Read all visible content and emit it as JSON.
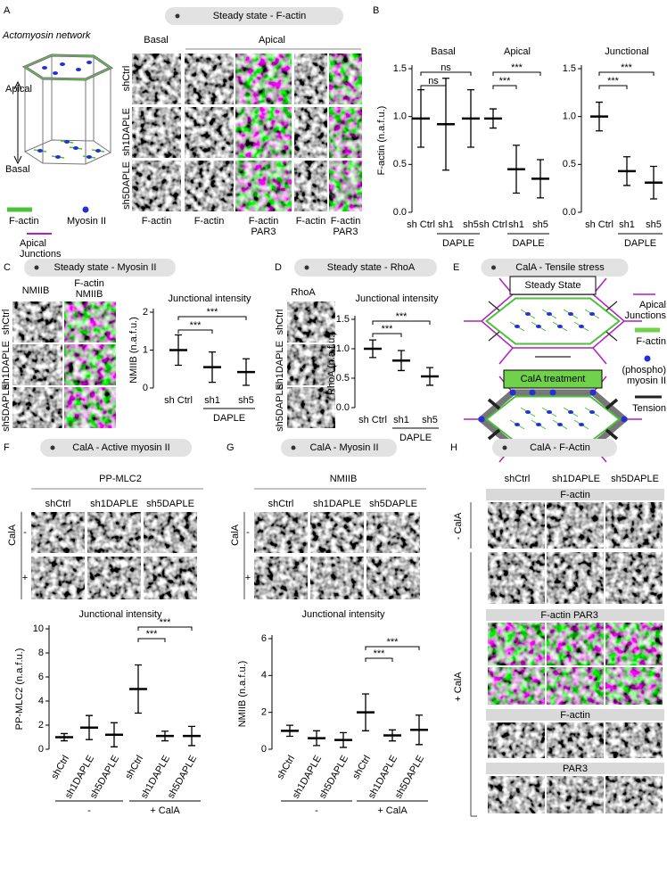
{
  "A": {
    "label": "A",
    "title": "Steady state - F-actin",
    "subtitle": "Actomyosin network",
    "diagram": [
      "Apical",
      "Basal"
    ],
    "legend": [
      [
        "F-actin"
      ],
      [
        "Myosin II"
      ],
      [
        "Apical",
        "Junctions"
      ]
    ],
    "columns": [
      "Basal",
      "Apical"
    ],
    "rows": [
      "shCtrl",
      "sh1DAPLE",
      "sh5DAPLE"
    ],
    "channels": [
      [
        "F-actin"
      ],
      [
        "F-actin"
      ],
      [
        "F-actin",
        "PAR3"
      ],
      [
        "F-actin"
      ],
      [
        "F-actin",
        "PAR3"
      ]
    ]
  },
  "B": {
    "label": "B"
  },
  "C": {
    "label": "C",
    "title": "Steady state - Myosin II",
    "image_labels": [
      "NMIIB",
      "F-actin",
      "NMIIB"
    ],
    "rows": [
      "shCtrl",
      "sh1DAPLE",
      "sh5DAPLE"
    ]
  },
  "D": {
    "label": "D",
    "title": "Steady state - RhoA",
    "image_label": "RhoA",
    "rows": [
      "shCtrl",
      "sh1DAPLE",
      "sh5DAPLE"
    ]
  },
  "E": {
    "label": "E",
    "title": "CalA - Tensile stress",
    "boxes": [
      "Steady State",
      "CalA treatment"
    ],
    "legend": [
      [
        "Apical",
        "Junctions"
      ],
      [
        "F-actin"
      ],
      [
        "(phospho)",
        "myosin II"
      ],
      [
        "Tension"
      ]
    ]
  },
  "F": {
    "label": "F",
    "title": "CalA - Active myosin II",
    "marker": "PP-MLC2",
    "columns": [
      "shCtrl",
      "sh1DAPLE",
      "sh5DAPLE"
    ],
    "treatment": "CalA",
    "conditions": [
      "-",
      "+"
    ]
  },
  "G": {
    "label": "G",
    "title": "CalA - Myosin II",
    "marker": "NMIIB",
    "columns": [
      "shCtrl",
      "sh1DAPLE",
      "sh5DAPLE"
    ],
    "treatment": "CalA",
    "conditions": [
      "-",
      "+"
    ]
  },
  "H": {
    "label": "H",
    "title": "CalA - F-Actin",
    "columns": [
      "shCtrl",
      "sh1DAPLE",
      "sh5DAPLE"
    ],
    "conditions": [
      "- CalA",
      "+ CalA"
    ],
    "bars": [
      "F-actin",
      "F-actin",
      "PAR3",
      "F-actin",
      "PAR3"
    ]
  },
  "chart_data": [
    {
      "type": "dot",
      "section_titles": [
        "Basal",
        "Apical"
      ],
      "ylabel": "F-actin (n.a.f.u.)",
      "categories": [
        "sh Ctrl",
        "sh1",
        "sh5",
        "sh Ctrl",
        "sh1",
        "sh5"
      ],
      "values": [
        0.98,
        0.92,
        0.98,
        0.98,
        0.45,
        0.35
      ],
      "errors": [
        0.3,
        0.48,
        0.3,
        0.1,
        0.25,
        0.2
      ],
      "ylim": [
        0,
        1.5
      ],
      "yticks": [
        {
          "value": 0,
          "label": "0.0"
        },
        {
          "value": 0.5,
          "label": "0.5"
        },
        {
          "value": 1,
          "label": "1.0"
        },
        {
          "value": 1.5,
          "label": "1.5"
        }
      ],
      "groups": [
        "DAPLE",
        "DAPLE"
      ],
      "significance": [
        "ns",
        "ns",
        "***",
        "***"
      ]
    },
    {
      "type": "dot",
      "title": "Junctional",
      "categories": [
        "sh Ctrl",
        "sh1",
        "sh5"
      ],
      "values": [
        1.0,
        0.43,
        0.31
      ],
      "errors": [
        0.15,
        0.15,
        0.17
      ],
      "ylim": [
        0,
        1.5
      ],
      "yticks": [
        {
          "value": 0,
          "label": "0.0"
        },
        {
          "value": 0.5,
          "label": "0.5"
        },
        {
          "value": 1,
          "label": "1.0"
        },
        {
          "value": 1.5,
          "label": "1.5"
        }
      ],
      "groups": [
        "DAPLE"
      ],
      "significance": [
        "***",
        "***"
      ]
    },
    {
      "type": "dot",
      "title": "Junctional intensity",
      "ylabel": "NMIIB (n.a.f.u.)",
      "categories": [
        "sh Ctrl",
        "sh1",
        "sh5"
      ],
      "values": [
        1.0,
        0.55,
        0.42
      ],
      "errors": [
        0.4,
        0.4,
        0.35
      ],
      "ylim": [
        0,
        2
      ],
      "yticks": [
        0,
        1,
        2
      ],
      "groups": [
        "DAPLE"
      ],
      "significance": [
        "***",
        "***"
      ]
    },
    {
      "type": "dot",
      "title": "Junctional intensity",
      "ylabel": "RhoA (n.a.f.u.)",
      "categories": [
        "sh Ctrl",
        "sh1",
        "sh5"
      ],
      "values": [
        1.0,
        0.8,
        0.53
      ],
      "errors": [
        0.15,
        0.17,
        0.15
      ],
      "ylim": [
        0,
        1.5
      ],
      "yticks": [
        {
          "value": 0,
          "label": "0.0"
        },
        {
          "value": 0.5,
          "label": "0.5"
        },
        {
          "value": 1,
          "label": "1.0"
        },
        {
          "value": 1.5,
          "label": "1.5"
        }
      ],
      "groups": [
        "DAPLE"
      ],
      "significance": [
        "***",
        "***"
      ]
    },
    {
      "type": "dot",
      "title": "Junctional intensity",
      "ylabel": "PP-MLC2 (n.a.f.u.)",
      "categories": [
        "shCtrl",
        "sh1DAPLE",
        "sh5DAPLE",
        "shCtrl",
        "sh1DAPLE",
        "sh5DAPLE"
      ],
      "values": [
        1.0,
        1.8,
        1.2,
        5.0,
        1.1,
        1.1
      ],
      "errors": [
        0.3,
        1.0,
        1.0,
        2.0,
        0.4,
        0.8
      ],
      "ylim": [
        0,
        10
      ],
      "yticks": [
        0,
        2,
        4,
        6,
        8,
        10
      ],
      "groups": [
        "-",
        "+ CalA"
      ],
      "significance": [
        "***",
        "***"
      ]
    },
    {
      "type": "dot",
      "title": "Junctional intensity",
      "ylabel": "NMIIB (n.a.f.u.)",
      "categories": [
        "shCtrl",
        "sh1DAPLE",
        "sh5DAPLE",
        "shCtrl",
        "sh1DAPLE",
        "sh5DAPLE"
      ],
      "values": [
        1.0,
        0.6,
        0.5,
        2.0,
        0.75,
        1.05
      ],
      "errors": [
        0.3,
        0.4,
        0.4,
        1.0,
        0.3,
        0.8
      ],
      "ylim": [
        0,
        6
      ],
      "yticks": [
        0,
        2,
        4,
        6
      ],
      "groups": [
        "-",
        "+ CalA"
      ],
      "significance": [
        "***",
        "***"
      ]
    }
  ]
}
